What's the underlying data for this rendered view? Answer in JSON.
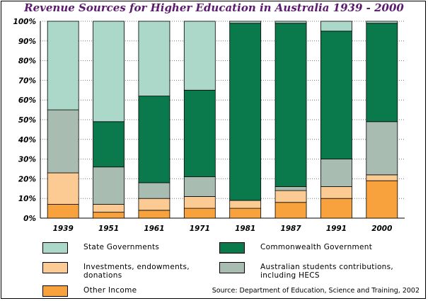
{
  "chart_data": {
    "type": "bar",
    "stacked": true,
    "percent": true,
    "title": "Revenue Sources for Higher Education in Australia 1939 - 2000",
    "xlabel": "",
    "ylabel": "",
    "ylim": [
      0,
      100
    ],
    "yticks": [
      "0%",
      "10%",
      "20%",
      "30%",
      "40%",
      "50%",
      "60%",
      "70%",
      "80%",
      "90%",
      "100%"
    ],
    "categories": [
      "1939",
      "1951",
      "1961",
      "1971",
      "1981",
      "1987",
      "1991",
      "2000"
    ],
    "series": [
      {
        "name": "Other Income",
        "color": "#f7a23c",
        "values": [
          7,
          3,
          4,
          5,
          5,
          8,
          10,
          19
        ]
      },
      {
        "name": "Investments, endowments, donations",
        "color": "#fccb94",
        "values": [
          16,
          4,
          6,
          6,
          4,
          6,
          6,
          3
        ]
      },
      {
        "name": "Australian students contributions, including HECS",
        "color": "#a8bcb1",
        "values": [
          32,
          19,
          8,
          10,
          0,
          2,
          14,
          27
        ]
      },
      {
        "name": "Commonwealth Government",
        "color": "#0a7a4c",
        "values": [
          0,
          23,
          44,
          44,
          90,
          83,
          65,
          50
        ]
      },
      {
        "name": "State Governments",
        "color": "#abd8c9",
        "values": [
          45,
          51,
          38,
          35,
          1,
          1,
          5,
          1
        ]
      }
    ],
    "legend_position": "bottom",
    "grid": true,
    "source": "Source: Department of Education, Science and Training, 2002"
  }
}
